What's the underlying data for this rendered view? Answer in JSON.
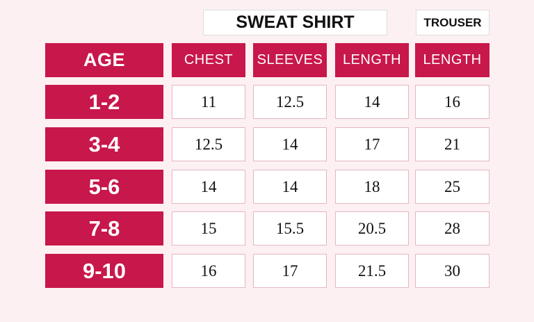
{
  "groups": [
    "SWEAT SHIRT",
    "TROUSER"
  ],
  "columns": [
    "AGE",
    "CHEST",
    "SLEEVES",
    "LENGTH",
    "LENGTH"
  ],
  "rows": [
    [
      "1-2",
      "11",
      "12.5",
      "14",
      "16"
    ],
    [
      "3-4",
      "12.5",
      "14",
      "17",
      "21"
    ],
    [
      "5-6",
      "14",
      "14",
      "18",
      "25"
    ],
    [
      "7-8",
      "15",
      "15.5",
      "20.5",
      "28"
    ],
    [
      "9-10",
      "16",
      "17",
      "21.5",
      "30"
    ]
  ]
}
